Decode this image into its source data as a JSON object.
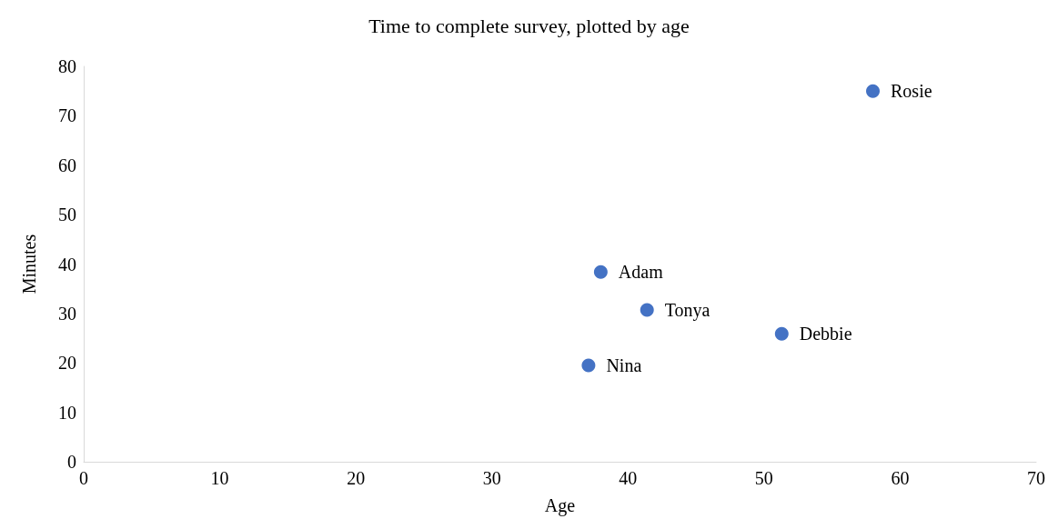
{
  "chart_data": {
    "type": "scatter",
    "title": "Time to complete survey, plotted by age",
    "xlabel": "Age",
    "ylabel": "Minutes",
    "x": [
      58.0,
      38.0,
      41.4,
      51.3,
      37.1
    ],
    "series": [
      {
        "color": "#4472c4",
        "values": [
          75.0,
          38.4,
          30.7,
          25.9,
          19.5
        ]
      }
    ],
    "value_labels": [
      "Rosie",
      "Adam",
      "Tonya",
      "Debbie",
      "Nina"
    ],
    "xlim": [
      0,
      70
    ],
    "xticks": [
      0,
      10,
      20,
      30,
      40,
      50,
      60,
      70
    ],
    "ylim": [
      0,
      80
    ],
    "yticks": [
      0,
      10,
      20,
      30,
      40,
      50,
      60,
      70,
      80
    ],
    "grid": false,
    "marker": "circle"
  }
}
